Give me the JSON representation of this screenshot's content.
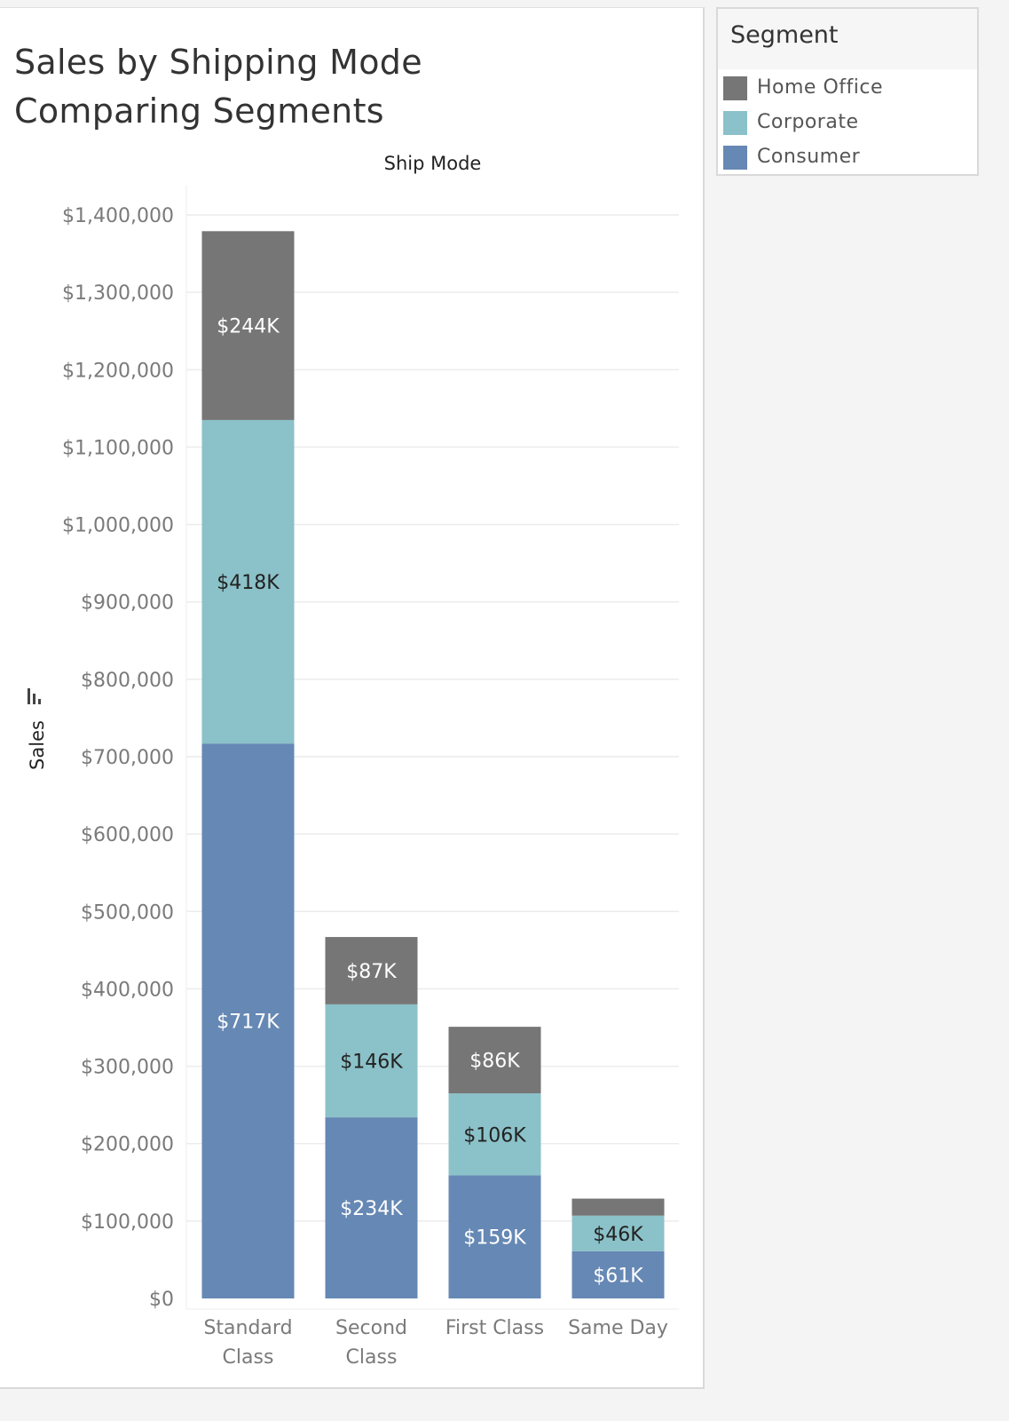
{
  "title_line1": "Sales by Shipping Mode",
  "title_line2": "Comparing Segments",
  "legend": {
    "title": "Segment",
    "items": [
      {
        "label": "Home Office",
        "color": "#767676"
      },
      {
        "label": "Corporate",
        "color": "#8bc1c8"
      },
      {
        "label": "Consumer",
        "color": "#6688b4"
      }
    ]
  },
  "chart_data": {
    "type": "bar",
    "stacked": true,
    "column_header": "Ship Mode",
    "ylabel": "Sales",
    "ylim": [
      0,
      1400000
    ],
    "yticks": [
      0,
      100000,
      200000,
      300000,
      400000,
      500000,
      600000,
      700000,
      800000,
      900000,
      1000000,
      1100000,
      1200000,
      1300000,
      1400000
    ],
    "ytick_labels": [
      "$0",
      "$100,000",
      "$200,000",
      "$300,000",
      "$400,000",
      "$500,000",
      "$600,000",
      "$700,000",
      "$800,000",
      "$900,000",
      "$1,000,000",
      "$1,100,000",
      "$1,200,000",
      "$1,300,000",
      "$1,400,000"
    ],
    "categories": [
      [
        "Standard",
        "Class"
      ],
      [
        "Second",
        "Class"
      ],
      [
        "First Class"
      ],
      [
        "Same Day"
      ]
    ],
    "grid": true,
    "series": [
      {
        "name": "Consumer",
        "color": "#6688b4",
        "label_color": "#ffffff",
        "values": [
          717000,
          234000,
          159000,
          61000
        ],
        "labels": [
          "$717K",
          "$234K",
          "$159K",
          "$61K"
        ]
      },
      {
        "name": "Corporate",
        "color": "#8bc1c8",
        "label_color": "#222222",
        "values": [
          418000,
          146000,
          106000,
          46000
        ],
        "labels": [
          "$418K",
          "$146K",
          "$106K",
          "$46K"
        ]
      },
      {
        "name": "Home Office",
        "color": "#767676",
        "label_color": "#ffffff",
        "values": [
          244000,
          87000,
          86000,
          22000
        ],
        "labels": [
          "$244K",
          "$87K",
          "$86K",
          ""
        ]
      }
    ]
  }
}
